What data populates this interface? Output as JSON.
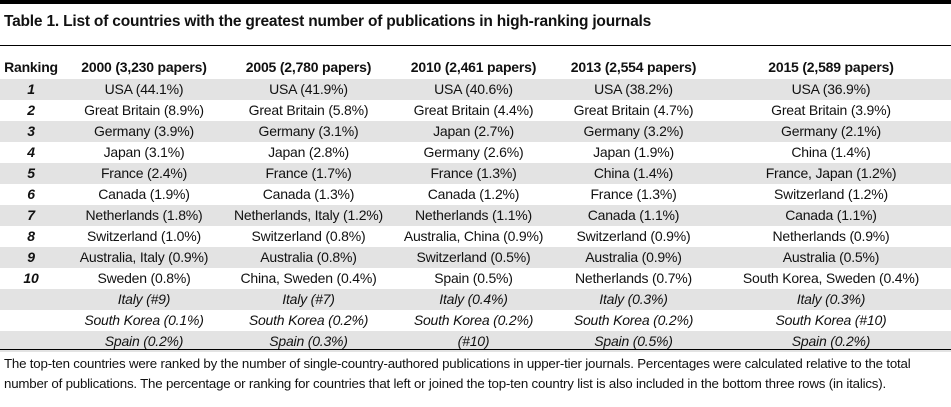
{
  "title": "Table 1. List of countries with the greatest number of publications in high-ranking journals",
  "columns": [
    "Ranking",
    "2000 (3,230 papers)",
    "2005 (2,780 papers)",
    "2010 (2,461 papers)",
    "2013 (2,554 papers)",
    "2015 (2,589 papers)"
  ],
  "rows": [
    {
      "rank": "1",
      "cells": [
        "USA (44.1%)",
        "USA (41.9%)",
        "USA (40.6%)",
        "USA (38.2%)",
        "USA (36.9%)"
      ]
    },
    {
      "rank": "2",
      "cells": [
        "Great Britain (8.9%)",
        "Great Britain (5.8%)",
        "Great Britain (4.4%)",
        "Great Britain (4.7%)",
        "Great Britain (3.9%)"
      ]
    },
    {
      "rank": "3",
      "cells": [
        "Germany (3.9%)",
        "Germany (3.1%)",
        "Japan (2.7%)",
        "Germany (3.2%)",
        "Germany (2.1%)"
      ]
    },
    {
      "rank": "4",
      "cells": [
        "Japan (3.1%)",
        "Japan (2.8%)",
        "Germany (2.6%)",
        "Japan (1.9%)",
        "China (1.4%)"
      ]
    },
    {
      "rank": "5",
      "cells": [
        "France (2.4%)",
        "France (1.7%)",
        "France (1.3%)",
        "China (1.4%)",
        "France, Japan (1.2%)"
      ]
    },
    {
      "rank": "6",
      "cells": [
        "Canada (1.9%)",
        "Canada (1.3%)",
        "Canada (1.2%)",
        "France (1.3%)",
        "Switzerland (1.2%)"
      ]
    },
    {
      "rank": "7",
      "cells": [
        "Netherlands (1.8%)",
        "Netherlands, Italy (1.2%)",
        "Netherlands (1.1%)",
        "Canada (1.1%)",
        "Canada (1.1%)"
      ]
    },
    {
      "rank": "8",
      "cells": [
        "Switzerland (1.0%)",
        "Switzerland (0.8%)",
        "Australia, China (0.9%)",
        "Switzerland (0.9%)",
        "Netherlands (0.9%)"
      ]
    },
    {
      "rank": "9",
      "cells": [
        "Australia, Italy (0.9%)",
        "Australia (0.8%)",
        "Switzerland (0.5%)",
        "Australia (0.9%)",
        "Australia (0.5%)"
      ]
    },
    {
      "rank": "10",
      "cells": [
        "Sweden (0.8%)",
        "China, Sweden (0.4%)",
        "Spain (0.5%)",
        "Netherlands (0.7%)",
        "South Korea, Sweden (0.4%)"
      ]
    },
    {
      "rank": "",
      "italic": true,
      "cells": [
        "Italy (#9)",
        "Italy (#7)",
        "Italy (0.4%)",
        "Italy (0.3%)",
        "Italy (0.3%)"
      ]
    },
    {
      "rank": "",
      "italic": true,
      "cells": [
        "South Korea (0.1%)",
        "South Korea (0.2%)",
        "South Korea (0.2%)",
        "South Korea (0.2%)",
        "South Korea (#10)"
      ]
    },
    {
      "rank": "",
      "italic": true,
      "cells": [
        "Spain (0.2%)",
        "Spain (0.3%)",
        "(#10)",
        "Spain (0.5%)",
        "Spain (0.2%)"
      ]
    }
  ],
  "footnote": "The top-ten countries were ranked by the number of single-country-authored publications in upper-tier journals. Percentages were calculated relative to the total number of publications. The percentage or ranking for countries that left or joined the top-ten country list is also included in the bottom three rows (in italics).",
  "colors": {
    "rule": "#000000",
    "shade": "#e3e3e3",
    "text": "#111111"
  }
}
